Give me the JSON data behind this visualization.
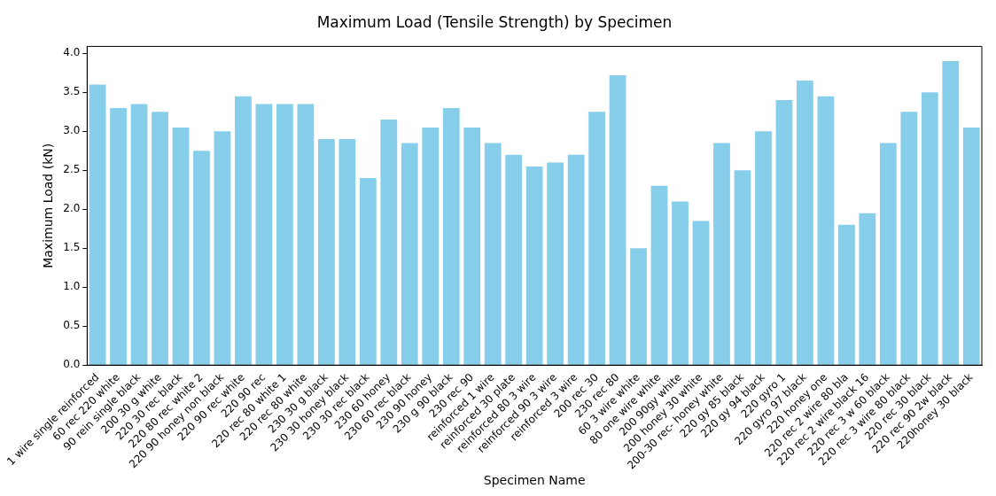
{
  "chart_data": {
    "type": "bar",
    "title": "Maximum Load (Tensile Strength) by Specimen",
    "xlabel": "Specimen Name",
    "ylabel": "Maximum Load (kN)",
    "categories": [
      "1 wire single reinforced",
      "60 rec 220 white",
      "90 rein single black",
      "200 30 g white",
      "220 30 rec black",
      "220 80 rec white 2",
      "220 90 honey non black",
      "220 90 rec white",
      "220 90 rec",
      "220 rec 80 white 1",
      "220 rec 80 white",
      "230 30 g black",
      "230 30 honey black",
      "230 30 rec black",
      "230 60 honey",
      "230 60 rec black",
      "230 90 honey",
      "230 g 90 black",
      "230 rec 90",
      "reinforced 1 wire",
      "reinforced 30 plate",
      "reinforced 80 3 wire",
      "reinforced 90 3 wire",
      "reinforced 3 wire",
      "200 rec 30",
      "230 rec 80",
      "60 3 wire white",
      "80 one wire white",
      "200 90gy white",
      "200 honey 30 white",
      "200-30 rec- honey white",
      "220 gy 85 black",
      "220 gy 94 black",
      "220 gyro 1",
      "220 gyro 97 black",
      "220 honey one",
      "220 rec 2 wire 80 bla",
      "220 rec 2 wire black 16",
      "220 rec 3 w 60 black",
      "220 rec 3 wire 80 black",
      "220 rec 30 black",
      "220 rec 90 2w black",
      "220honey 30 black"
    ],
    "values": [
      3.6,
      3.3,
      3.35,
      3.25,
      3.05,
      2.75,
      3.0,
      3.45,
      3.35,
      3.35,
      3.35,
      2.9,
      2.9,
      2.4,
      3.15,
      2.85,
      3.05,
      3.3,
      3.05,
      2.85,
      2.7,
      2.55,
      2.6,
      2.7,
      3.25,
      3.72,
      1.5,
      2.3,
      2.1,
      1.85,
      2.85,
      2.5,
      3.0,
      3.4,
      3.65,
      3.45,
      1.8,
      1.95,
      2.85,
      3.25,
      3.5,
      3.9,
      3.05
    ],
    "color": "#87ceeb",
    "ylim": [
      0,
      4.09
    ],
    "yticks": [
      {
        "value": 0,
        "label": "0.0"
      },
      {
        "value": 0.5,
        "label": "0.5"
      },
      {
        "value": 1,
        "label": "1.0"
      },
      {
        "value": 1.5,
        "label": "1.5"
      },
      {
        "value": 2,
        "label": "2.0"
      },
      {
        "value": 2.5,
        "label": "2.5"
      },
      {
        "value": 3,
        "label": "3.0"
      },
      {
        "value": 3.5,
        "label": "3.5"
      },
      {
        "value": 4,
        "label": "4.0"
      }
    ],
    "grid": false,
    "legend": false
  }
}
